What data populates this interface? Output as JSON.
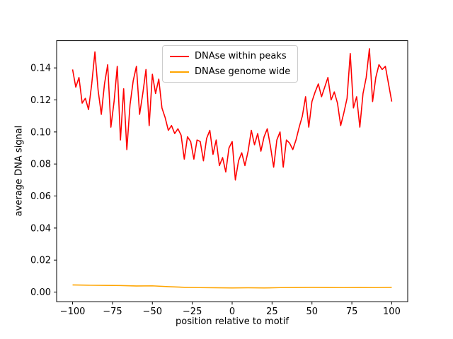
{
  "chart_data": {
    "type": "line",
    "title": "",
    "xlabel": "position relative to motif",
    "ylabel": "average DNA signal",
    "grid": false,
    "legend_position": "upper center",
    "xlim": [
      -110,
      110
    ],
    "ylim": [
      -0.006,
      0.157
    ],
    "xticks": {
      "values": [
        -100,
        -75,
        -50,
        -25,
        0,
        25,
        50,
        75,
        100
      ],
      "labels": [
        "−100",
        "−75",
        "−50",
        "−25",
        "0",
        "25",
        "50",
        "75",
        "100"
      ]
    },
    "yticks": {
      "values": [
        0.0,
        0.02,
        0.04,
        0.06,
        0.08,
        0.1,
        0.12,
        0.14
      ],
      "labels": [
        "0.00",
        "0.02",
        "0.04",
        "0.06",
        "0.08",
        "0.10",
        "0.12",
        "0.14"
      ]
    },
    "series": [
      {
        "name": "DNAse within peaks",
        "color": "#ff0000",
        "x": [
          -100,
          -98,
          -96,
          -94,
          -92,
          -90,
          -88,
          -86,
          -84,
          -82,
          -80,
          -78,
          -76,
          -74,
          -72,
          -70,
          -68,
          -66,
          -64,
          -62,
          -60,
          -58,
          -56,
          -54,
          -52,
          -50,
          -48,
          -46,
          -44,
          -42,
          -40,
          -38,
          -36,
          -34,
          -32,
          -30,
          -28,
          -26,
          -24,
          -22,
          -20,
          -18,
          -16,
          -14,
          -12,
          -10,
          -8,
          -6,
          -4,
          -2,
          0,
          2,
          4,
          6,
          8,
          10,
          12,
          14,
          16,
          18,
          20,
          22,
          24,
          26,
          28,
          30,
          32,
          34,
          36,
          38,
          40,
          42,
          44,
          46,
          48,
          50,
          52,
          54,
          56,
          58,
          60,
          62,
          64,
          66,
          68,
          70,
          72,
          74,
          76,
          78,
          80,
          82,
          84,
          86,
          88,
          90,
          92,
          94,
          96,
          98,
          100
        ],
        "values": [
          0.139,
          0.128,
          0.134,
          0.118,
          0.121,
          0.114,
          0.13,
          0.15,
          0.126,
          0.111,
          0.13,
          0.142,
          0.103,
          0.119,
          0.141,
          0.095,
          0.127,
          0.089,
          0.117,
          0.132,
          0.141,
          0.111,
          0.124,
          0.139,
          0.104,
          0.136,
          0.124,
          0.133,
          0.115,
          0.109,
          0.101,
          0.104,
          0.099,
          0.102,
          0.098,
          0.083,
          0.097,
          0.094,
          0.083,
          0.095,
          0.094,
          0.082,
          0.096,
          0.101,
          0.086,
          0.095,
          0.079,
          0.084,
          0.075,
          0.09,
          0.094,
          0.07,
          0.082,
          0.087,
          0.079,
          0.088,
          0.101,
          0.092,
          0.099,
          0.088,
          0.097,
          0.102,
          0.091,
          0.078,
          0.095,
          0.1,
          0.078,
          0.095,
          0.093,
          0.089,
          0.095,
          0.103,
          0.11,
          0.122,
          0.103,
          0.119,
          0.125,
          0.13,
          0.122,
          0.128,
          0.134,
          0.12,
          0.125,
          0.118,
          0.104,
          0.112,
          0.121,
          0.149,
          0.115,
          0.122,
          0.103,
          0.124,
          0.134,
          0.152,
          0.119,
          0.134,
          0.142,
          0.139,
          0.141,
          0.13,
          0.119
        ]
      },
      {
        "name": "DNAse genome wide",
        "color": "#ffa500",
        "x": [
          -100,
          -90,
          -80,
          -70,
          -60,
          -50,
          -40,
          -30,
          -20,
          -10,
          0,
          10,
          20,
          30,
          40,
          50,
          60,
          70,
          80,
          90,
          100
        ],
        "values": [
          0.0045,
          0.0043,
          0.0042,
          0.0041,
          0.0038,
          0.0039,
          0.0034,
          0.003,
          0.0028,
          0.0027,
          0.0026,
          0.0027,
          0.0026,
          0.0028,
          0.0029,
          0.003,
          0.0029,
          0.0028,
          0.0029,
          0.0028,
          0.003
        ]
      }
    ]
  }
}
